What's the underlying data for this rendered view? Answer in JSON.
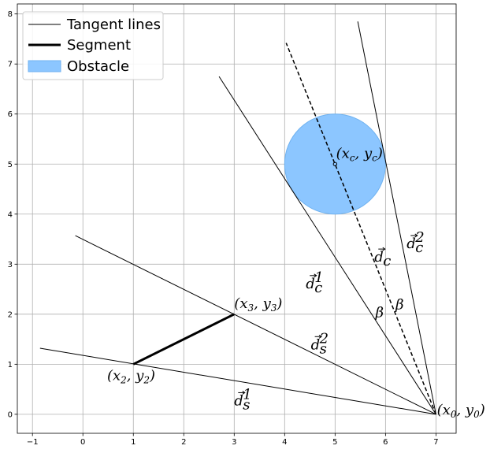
{
  "chart_data": {
    "type": "diagram",
    "xlim": [
      -1.3,
      7.4
    ],
    "ylim": [
      -0.38,
      8.2
    ],
    "xticks": [
      -1,
      0,
      1,
      2,
      3,
      4,
      5,
      6,
      7
    ],
    "yticks": [
      0,
      1,
      2,
      3,
      4,
      5,
      6,
      7,
      8
    ],
    "grid": true,
    "legend_position": "top-left",
    "legend": {
      "tangent": "Tangent lines",
      "segment": "Segment",
      "obstacle": "Obstacle"
    },
    "colors": {
      "obstacle_fill": "#8cc6ff",
      "obstacle_edge": "#6fb2f0",
      "grid": "#b0b0b0",
      "line": "#000000"
    },
    "obstacle": {
      "cx": 5,
      "cy": 5,
      "r": 1
    },
    "segment": {
      "from": [
        1,
        1
      ],
      "to": [
        3,
        2
      ]
    },
    "tangent_lines": [
      {
        "from": [
          7,
          0
        ],
        "to": [
          -0.85,
          1.32
        ]
      },
      {
        "from": [
          7,
          0
        ],
        "to": [
          -0.15,
          3.57
        ]
      },
      {
        "from": [
          7,
          0
        ],
        "to": [
          2.7,
          6.75
        ]
      },
      {
        "from": [
          7,
          0
        ],
        "to": [
          5.45,
          7.85
        ]
      }
    ],
    "dashed_line": {
      "from": [
        7,
        0
      ],
      "to": [
        4.03,
        7.42
      ]
    },
    "center_marker": [
      5,
      5
    ],
    "labels": [
      {
        "base": "(x",
        "sub1": "0",
        "mid": ", y",
        "sub2": "0",
        "end": ")",
        "x": 7.02,
        "y": 0.0
      },
      {
        "base": "(x",
        "sub1": "2",
        "mid": ", y",
        "sub2": "2",
        "end": ")",
        "x": 0.48,
        "y": 0.68
      },
      {
        "base": "(x",
        "sub1": "3",
        "mid": ", y",
        "sub2": "3",
        "end": ")",
        "x": 3.0,
        "y": 2.12
      },
      {
        "base": "(x",
        "sub1": "c",
        "mid": ", y",
        "sub2": "c",
        "end": ")",
        "x": 5.02,
        "y": 5.12
      }
    ],
    "vector_labels": [
      {
        "base": "d",
        "sub": "c",
        "sup": "1",
        "x": 4.42,
        "y": 2.52
      },
      {
        "base": "d",
        "sub": "c",
        "sup": "2",
        "x": 6.42,
        "y": 3.32
      },
      {
        "base": "d",
        "sub": "c",
        "sup": "",
        "x": 5.78,
        "y": 3.05
      },
      {
        "base": "d",
        "sub": "s",
        "sup": "2",
        "x": 4.52,
        "y": 1.3
      },
      {
        "base": "d",
        "sub": "s",
        "sup": "1",
        "x": 3.0,
        "y": 0.18
      }
    ],
    "angle_labels": [
      {
        "text": "β",
        "x": 5.8,
        "y": 1.94
      },
      {
        "text": "β",
        "x": 6.2,
        "y": 2.1
      }
    ]
  }
}
